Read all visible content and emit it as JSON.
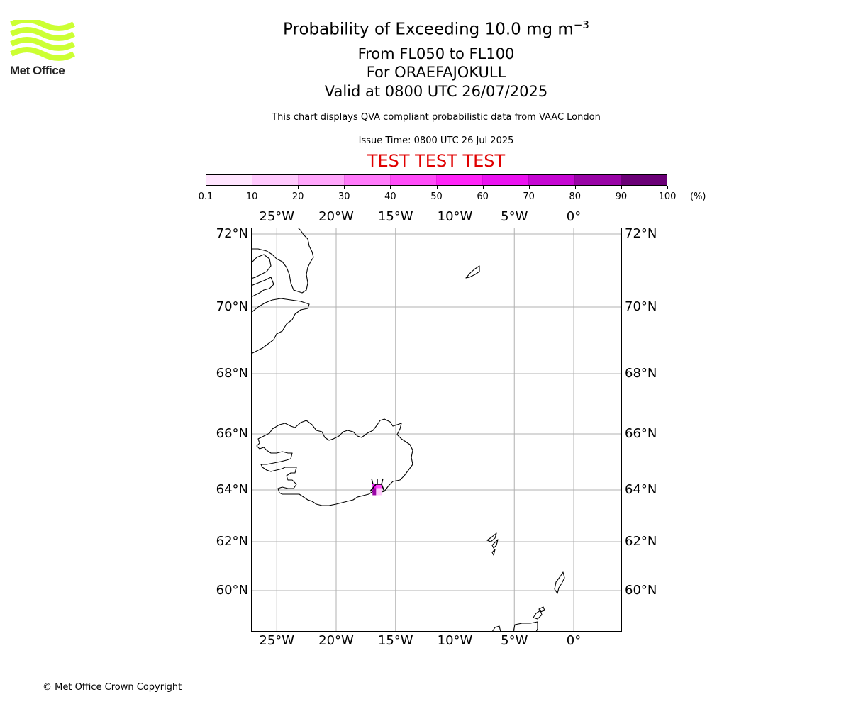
{
  "logo": {
    "text": "Met Office",
    "color": "#ccff33"
  },
  "title": {
    "main": "Probability of Exceeding 10.0 mg m",
    "exponent": "−3"
  },
  "subtitle_lines": [
    "From FL050 to FL100",
    "For ORAEFAJOKULL",
    "Valid at 0800 UTC 26/07/2025"
  ],
  "description": "This chart displays QVA compliant probabilistic data from VAAC London",
  "issue_time": "Issue Time: 0800 UTC 26 Jul 2025",
  "test_banner": "TEST TEST TEST",
  "colorbar": {
    "ticks": [
      "0.1",
      "10",
      "20",
      "30",
      "40",
      "50",
      "60",
      "70",
      "80",
      "90",
      "100"
    ],
    "unit": "(%)",
    "colors": [
      "#ffe5fe",
      "#ffc9fd",
      "#ffa6fb",
      "#ff7afa",
      "#ff4cf8",
      "#ff24f7",
      "#eb12f0",
      "#c507d2",
      "#9904a6",
      "#6b0077"
    ]
  },
  "chart_data": {
    "type": "map",
    "projection": "polar stereographic",
    "extent": {
      "lon": [
        -27,
        4
      ],
      "lat": [
        59,
        72
      ]
    },
    "meridian_labels": [
      "25°W",
      "20°W",
      "15°W",
      "10°W",
      "5°W",
      "0°"
    ],
    "meridians": [
      -25,
      -20,
      -15,
      -10,
      -5,
      0
    ],
    "parallel_labels": [
      "72°N",
      "70°N",
      "68°N",
      "66°N",
      "64°N",
      "62°N",
      "60°N"
    ],
    "parallels": [
      72,
      70,
      68,
      66,
      64,
      62,
      60
    ],
    "gridlines": true,
    "volcano": {
      "name": "ORAEFAJOKULL",
      "lon": -16.65,
      "lat": 64.0
    },
    "probability_cells": [
      {
        "lon": -16.7,
        "lat": 64.0,
        "probability_band": "60-70"
      },
      {
        "lon": -16.4,
        "lat": 64.0,
        "probability_band": "40-50"
      },
      {
        "lon": -16.7,
        "lat": 63.85,
        "probability_band": "80-90"
      },
      {
        "lon": -16.4,
        "lat": 63.85,
        "probability_band": "10-20"
      }
    ]
  },
  "copyright": "© Met Office Crown Copyright"
}
